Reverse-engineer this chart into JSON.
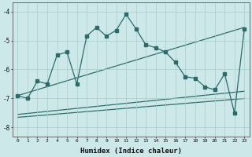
{
  "xlabel": "Humidex (Indice chaleur)",
  "background_color": "#cce8e8",
  "line_color": "#2d6b6b",
  "xlim": [
    -0.5,
    23.5
  ],
  "ylim": [
    -8.3,
    -3.7
  ],
  "yticks": [
    -8,
    -7,
    -6,
    -5,
    -4
  ],
  "xticks": [
    0,
    1,
    2,
    3,
    4,
    5,
    6,
    7,
    8,
    9,
    10,
    11,
    12,
    13,
    14,
    15,
    16,
    17,
    18,
    19,
    20,
    21,
    22,
    23
  ],
  "series1_x": [
    0,
    1,
    2,
    3,
    4,
    5,
    6,
    7,
    8,
    9,
    10,
    11,
    12,
    13,
    14,
    15,
    16,
    17,
    18,
    19,
    20,
    21,
    22,
    23
  ],
  "series1_y": [
    -6.9,
    -7.0,
    -6.4,
    -6.5,
    -5.5,
    -5.4,
    -6.5,
    -4.85,
    -4.55,
    -4.85,
    -4.65,
    -4.1,
    -4.6,
    -5.15,
    -5.25,
    -5.4,
    -5.75,
    -6.25,
    -6.3,
    -6.6,
    -6.7,
    -6.15,
    -7.5,
    -4.6
  ],
  "series2_x": [
    0,
    23
  ],
  "series2_y": [
    -6.9,
    -4.55
  ],
  "series3_x": [
    0,
    23
  ],
  "series3_y": [
    -7.55,
    -6.75
  ],
  "series4_x": [
    0,
    23
  ],
  "series4_y": [
    -7.65,
    -7.0
  ]
}
